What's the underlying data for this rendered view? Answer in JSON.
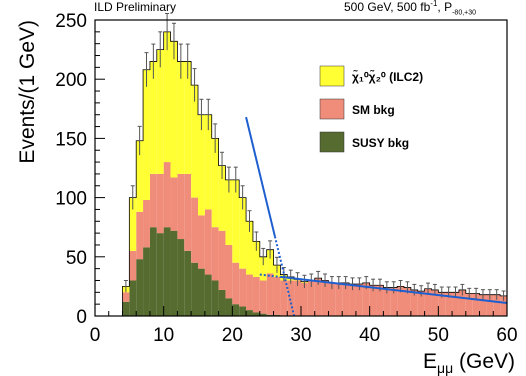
{
  "header": {
    "left": "ILD Preliminary",
    "right_main": "500 GeV, 500 fb",
    "right_sup": "-1",
    "right_sep": ", P",
    "right_sub": "-80,+30"
  },
  "chart_data": {
    "type": "histogram",
    "title": "",
    "xlabel": "E_μμ (GeV)",
    "ylabel": "Events/(1 GeV)",
    "xlim": [
      0,
      60
    ],
    "ylim": [
      0,
      250
    ],
    "xticks": [
      0,
      10,
      20,
      30,
      40,
      50,
      60
    ],
    "yticks": [
      0,
      50,
      100,
      150,
      200,
      250
    ],
    "grid": false,
    "legend_position": "top-right",
    "bin_width": 1,
    "x": [
      4,
      5,
      6,
      7,
      8,
      9,
      10,
      11,
      12,
      13,
      14,
      15,
      16,
      17,
      18,
      19,
      20,
      21,
      22,
      23,
      24,
      25,
      26,
      27,
      28,
      29,
      30,
      31,
      32,
      33,
      34,
      35,
      36,
      37,
      38,
      39,
      40,
      41,
      42,
      43,
      44,
      45,
      46,
      47,
      48,
      49,
      50,
      51,
      52,
      53,
      54,
      55,
      56,
      57,
      58,
      59
    ],
    "series": [
      {
        "name": "SUSY bkg",
        "color": "#556b2f",
        "values": [
          12,
          30,
          48,
          58,
          75,
          70,
          75,
          72,
          65,
          55,
          45,
          40,
          35,
          30,
          22,
          15,
          10,
          8,
          5,
          3,
          2,
          1,
          1,
          0,
          0,
          0,
          0,
          0,
          0,
          0,
          0,
          0,
          0,
          0,
          0,
          0,
          0,
          0,
          0,
          0,
          0,
          0,
          0,
          0,
          0,
          0,
          0,
          0,
          0,
          0,
          0,
          0,
          0,
          0,
          0,
          0
        ]
      },
      {
        "name": "SM bkg",
        "color": "#f08c7a",
        "values": [
          8,
          25,
          40,
          40,
          45,
          50,
          55,
          45,
          55,
          65,
          55,
          45,
          55,
          45,
          50,
          45,
          35,
          32,
          30,
          30,
          28,
          35,
          32,
          30,
          30,
          30,
          28,
          30,
          32,
          30,
          28,
          28,
          28,
          27,
          27,
          28,
          26,
          26,
          24,
          24,
          25,
          24,
          22,
          21,
          23,
          22,
          20,
          20,
          20,
          22,
          19,
          19,
          18,
          18,
          18,
          17
        ]
      },
      {
        "name": "χ̃₁⁰χ̃₂⁰ (ILC2)",
        "color": "#ffff33",
        "values": [
          5,
          45,
          60,
          110,
          95,
          105,
          110,
          115,
          95,
          95,
          95,
          85,
          80,
          75,
          55,
          55,
          70,
          60,
          45,
          30,
          20,
          20,
          10,
          5,
          3,
          1,
          1,
          0,
          0,
          0,
          0,
          0,
          0,
          0,
          0,
          0,
          0,
          0,
          0,
          0,
          0,
          0,
          0,
          0,
          0,
          0,
          0,
          0,
          0,
          0,
          0,
          0,
          0,
          0,
          0,
          0
        ]
      }
    ],
    "fits": [
      {
        "name": "signal edge fit",
        "color": "#1e5fd0",
        "points": [
          [
            22,
            168
          ],
          [
            29,
            0
          ]
        ]
      },
      {
        "name": "background fit",
        "color": "#1e5fd0",
        "points": [
          [
            24,
            35
          ],
          [
            60,
            11
          ]
        ]
      }
    ]
  }
}
